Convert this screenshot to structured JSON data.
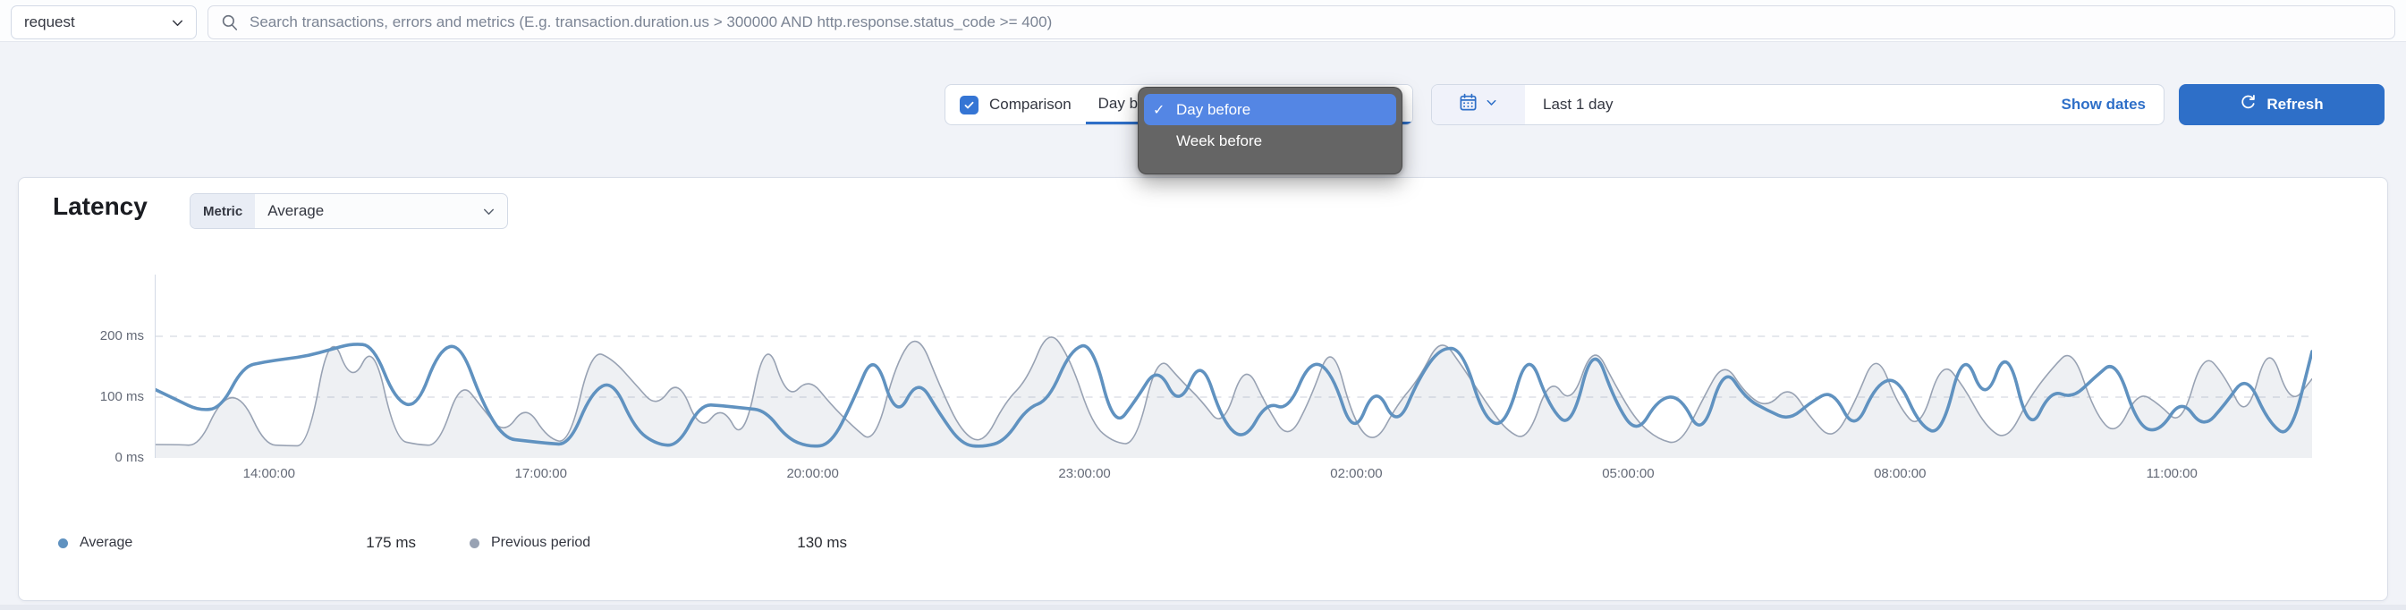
{
  "transaction_type": {
    "value": "request"
  },
  "search": {
    "placeholder": "Search transactions, errors and metrics (E.g. transaction.duration.us > 300000 AND http.response.status_code >= 400)"
  },
  "toolbar": {
    "comparison": {
      "label": "Comparison",
      "checked": true,
      "selected_option": "Day before",
      "dropdown_options": [
        {
          "label": "Day before",
          "selected": true
        },
        {
          "label": "Week before",
          "selected": false
        }
      ]
    },
    "time_range": {
      "value": "Last 1 day",
      "show_dates_label": "Show dates"
    },
    "refresh_label": "Refresh"
  },
  "panel": {
    "title": "Latency",
    "metric_prefix": "Metric",
    "metric_value": "Average"
  },
  "legend": {
    "items": [
      {
        "label": "Average",
        "value": "175 ms",
        "color": "#6092c0"
      },
      {
        "label": "Previous period",
        "value": "130 ms",
        "color": "#98a2b3"
      }
    ]
  },
  "colors": {
    "primary_blue": "#2e6fc8",
    "series_blue": "#6092c0",
    "series_gray": "#98a2b3",
    "series_gray_fill": "rgba(152,162,179,0.16)",
    "gridline": "#d6dae2",
    "popup_highlight": "#5486e4"
  },
  "chart_data": {
    "type": "line",
    "title": "Latency",
    "ylabel": "ms",
    "ylim": [
      0,
      250
    ],
    "grid": "horizontal dashed at 100 ms and 200 ms",
    "legend_position": "bottom",
    "y_ticks": [
      "0 ms",
      "100 ms",
      "200 ms"
    ],
    "x_ticks": [
      "14:00:00",
      "17:00:00",
      "20:00:00",
      "23:00:00",
      "02:00:00",
      "05:00:00",
      "08:00:00",
      "11:00:00"
    ],
    "axis_layout": {
      "tick_start_frac": 0.053,
      "tick_step_frac": 0.126
    },
    "series": [
      {
        "name": "Previous period",
        "color": "#98a2b3",
        "style": "line+area",
        "fill": "rgba(152,162,179,0.16)",
        "stroke_width": 1.6,
        "values": [
          22,
          22,
          20,
          98,
          100,
          22,
          20,
          20,
          215,
          120,
          192,
          30,
          22,
          20,
          128,
          82,
          38,
          88,
          32,
          24,
          178,
          162,
          122,
          82,
          132,
          42,
          88,
          22,
          205,
          95,
          132,
          88,
          52,
          22,
          158,
          208,
          118,
          42,
          22,
          92,
          128,
          215,
          162,
          55,
          25,
          22,
          172,
          130,
          95,
          48,
          160,
          85,
          28,
          95,
          195,
          58,
          22,
          88,
          130,
          200,
          150,
          95,
          45,
          28,
          135,
          85,
          190,
          120,
          60,
          30,
          22,
          95,
          160,
          105,
          82,
          120,
          65,
          28,
          90,
          178,
          85,
          45,
          162,
          118,
          52,
          28,
          98,
          145,
          182,
          75,
          35,
          110,
          88,
          52,
          175,
          135,
          60,
          195,
          85,
          130
        ]
      },
      {
        "name": "Average",
        "color": "#6092c0",
        "style": "line",
        "stroke_width": 3.6,
        "values": [
          112,
          95,
          78,
          82,
          150,
          158,
          163,
          168,
          178,
          188,
          185,
          95,
          82,
          178,
          188,
          90,
          32,
          28,
          24,
          22,
          108,
          128,
          48,
          22,
          20,
          88,
          86,
          82,
          78,
          32,
          18,
          22,
          92,
          178,
          62,
          132,
          72,
          22,
          18,
          28,
          82,
          95,
          178,
          190,
          48,
          95,
          152,
          82,
          168,
          58,
          28,
          92,
          78,
          162,
          142,
          32,
          122,
          48,
          132,
          182,
          178,
          62,
          52,
          182,
          82,
          48,
          192,
          92,
          38,
          98,
          102,
          32,
          152,
          98,
          78,
          62,
          92,
          112,
          42,
          122,
          132,
          52,
          38,
          182,
          88,
          188,
          38,
          112,
          98,
          132,
          162,
          52,
          42,
          98,
          48,
          88,
          138,
          58,
          32,
          175
        ]
      }
    ]
  }
}
